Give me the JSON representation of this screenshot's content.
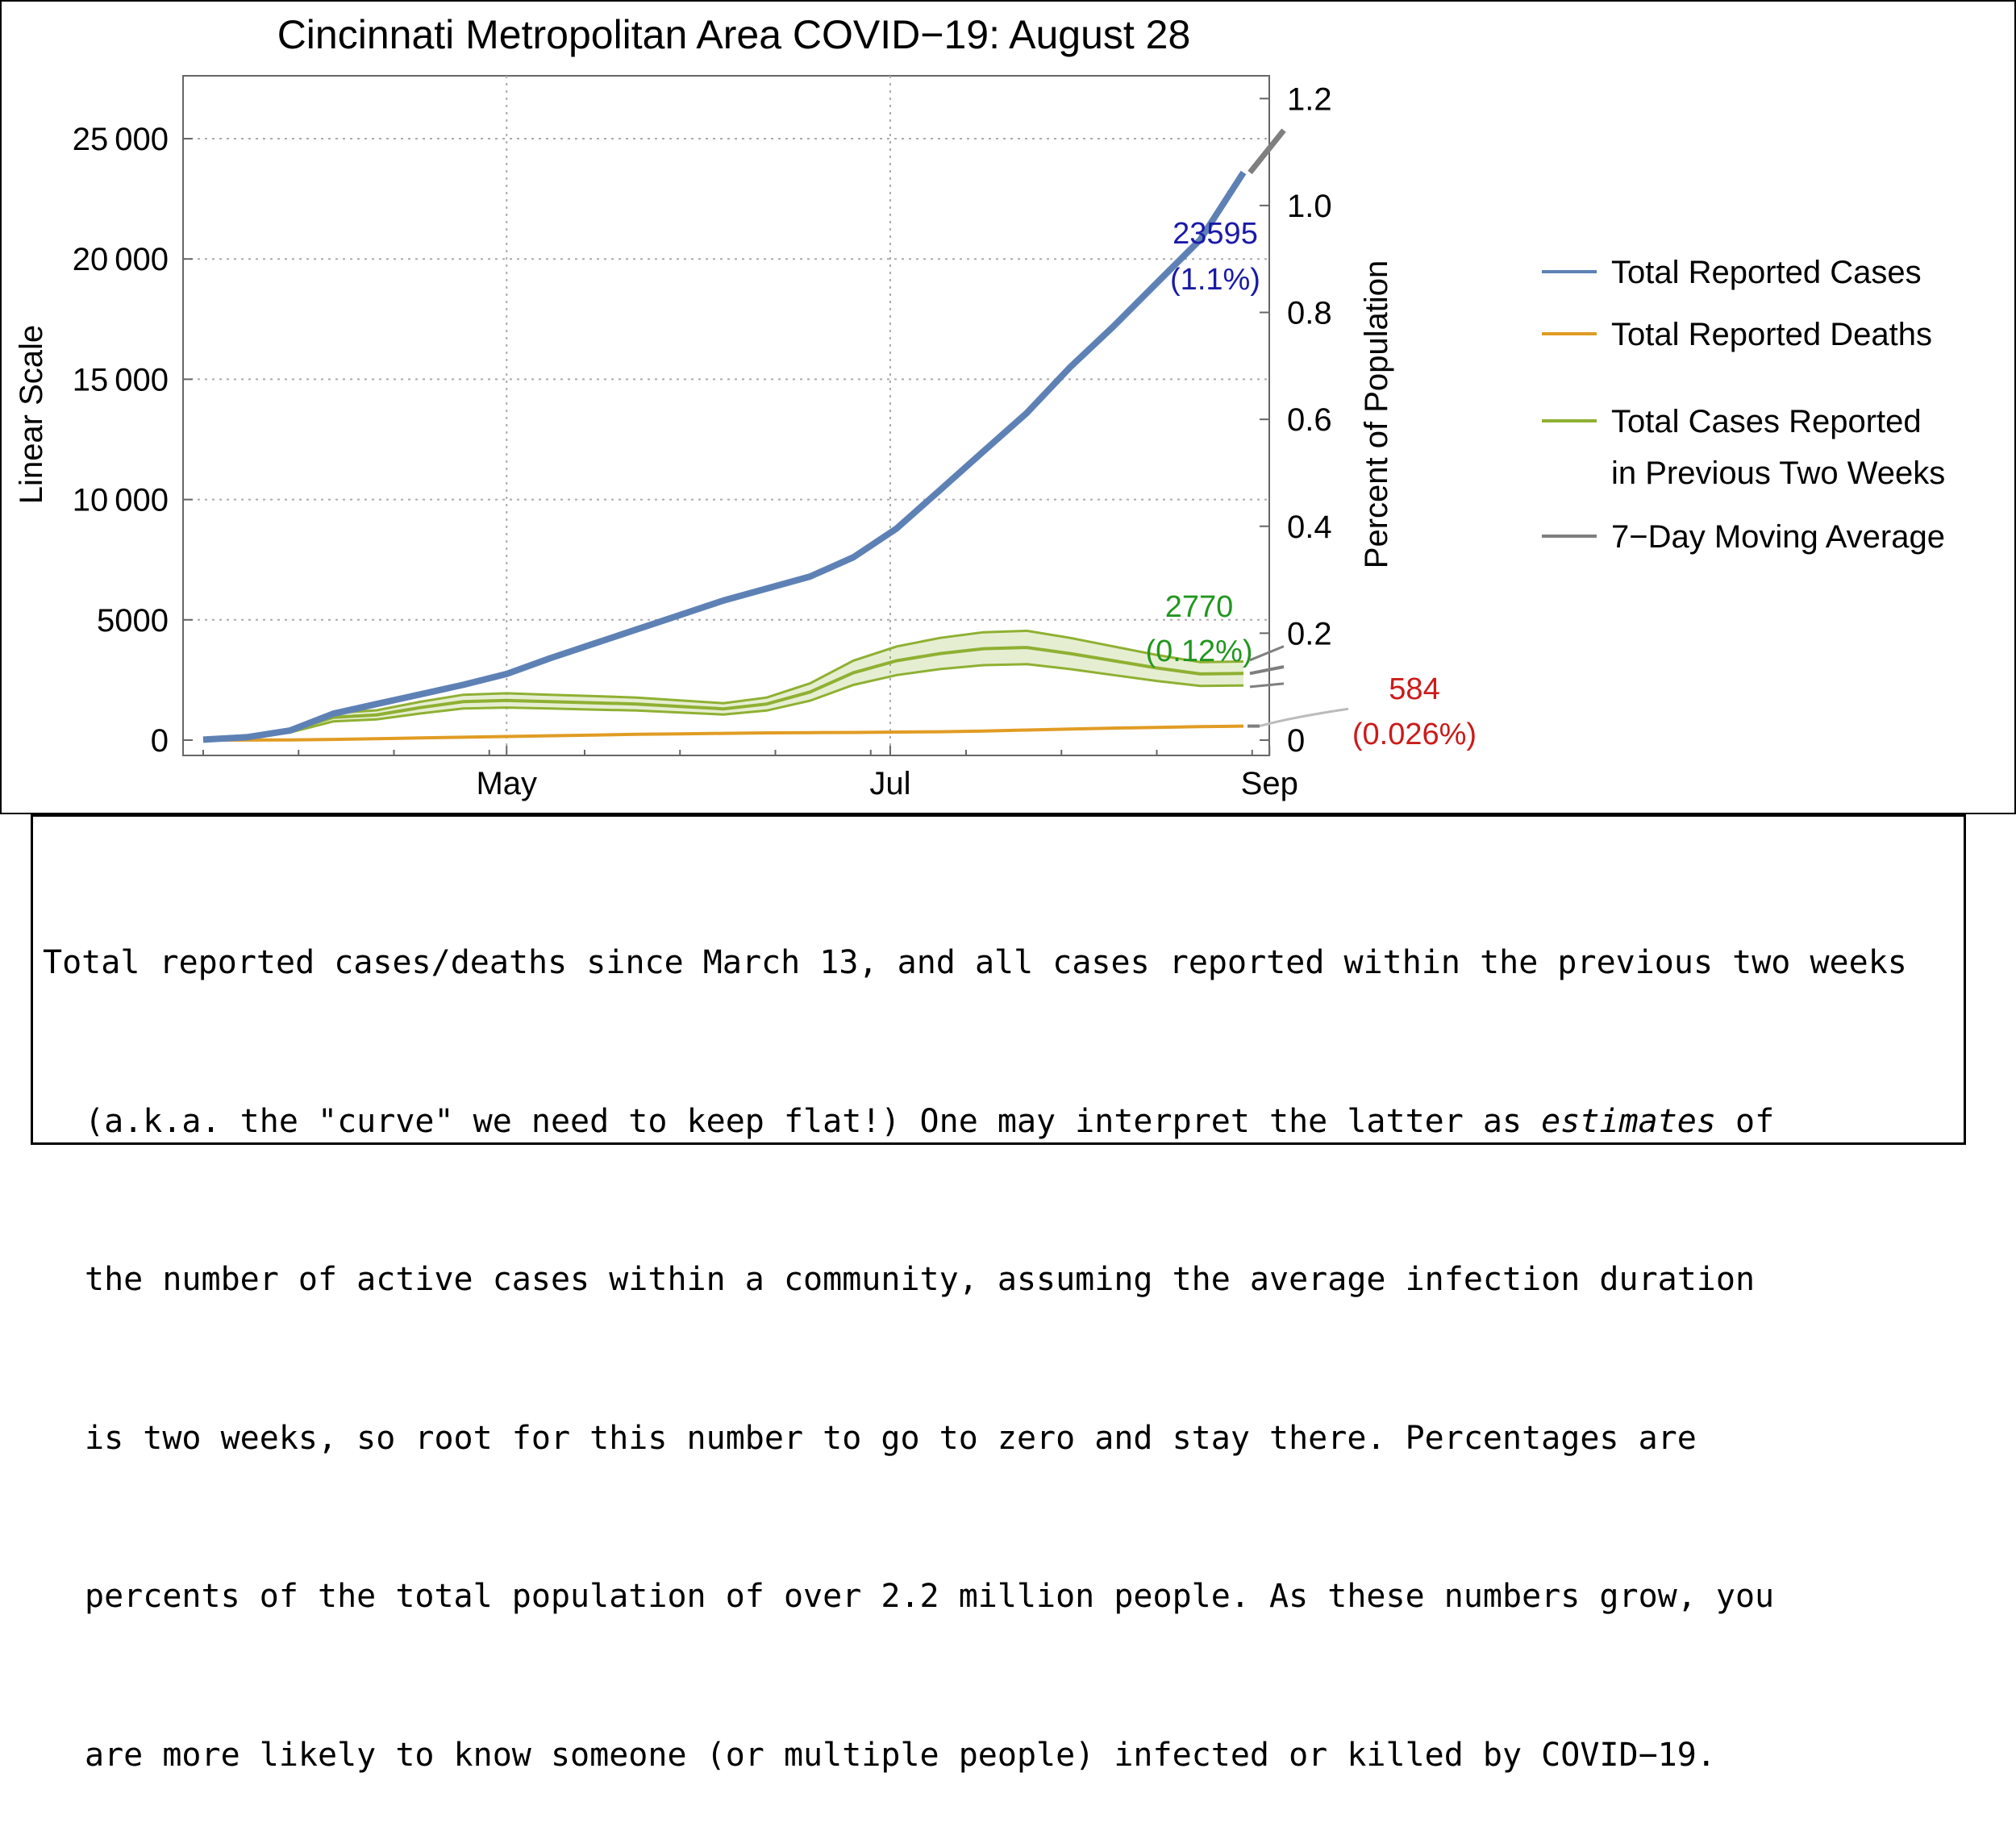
{
  "chart_data": {
    "type": "line",
    "title": "Cincinnati Metropolitan Area COVID−19: August 28",
    "ylabel": "Linear Scale",
    "y2label": "Percent of Population",
    "ylim": [
      0,
      27000
    ],
    "y2lim": [
      0,
      1.2
    ],
    "yticks": [
      0,
      5000,
      10000,
      15000,
      20000,
      25000
    ],
    "ytick_labels": [
      "0",
      "5000",
      "10 000",
      "15 000",
      "20 000",
      "25 000"
    ],
    "y2ticks": [
      0,
      0.2,
      0.4,
      0.6,
      0.8,
      1.0,
      1.2
    ],
    "y2tick_labels": [
      "0",
      "0.2",
      "0.4",
      "0.6",
      "0.8",
      "1.0",
      "1.2"
    ],
    "xticks": [
      "May",
      "Jul",
      "Sep"
    ],
    "grid": true,
    "legend_placement": "right",
    "x_dates": [
      "Mar 13",
      "Mar 20",
      "Mar 27",
      "Apr 3",
      "Apr 10",
      "Apr 17",
      "Apr 24",
      "May 1",
      "May 8",
      "May 15",
      "May 22",
      "May 29",
      "Jun 5",
      "Jun 12",
      "Jun 19",
      "Jun 26",
      "Jul 3",
      "Jul 10",
      "Jul 17",
      "Jul 24",
      "Jul 31",
      "Aug 7",
      "Aug 14",
      "Aug 21",
      "Aug 28"
    ],
    "series": [
      {
        "name": "Total Reported Cases",
        "color": "#5e81b5",
        "values": [
          20,
          120,
          400,
          1100,
          1500,
          1900,
          2300,
          2750,
          3400,
          4000,
          4600,
          5200,
          5800,
          6300,
          6800,
          7600,
          8800,
          10400,
          12000,
          13600,
          15500,
          17200,
          19000,
          20800,
          23595
        ]
      },
      {
        "name": "Total Reported Deaths",
        "color": "#e19c24",
        "values": [
          0,
          2,
          10,
          30,
          60,
          90,
          120,
          150,
          180,
          210,
          240,
          260,
          280,
          300,
          310,
          320,
          335,
          350,
          380,
          420,
          460,
          500,
          530,
          560,
          584
        ]
      },
      {
        "name": "Total Cases Reported in Previous Two Weeks",
        "color": "#8fb032",
        "values": [
          20,
          120,
          390,
          950,
          1050,
          1350,
          1600,
          1650,
          1600,
          1550,
          1500,
          1400,
          1300,
          1500,
          2000,
          2800,
          3300,
          3600,
          3800,
          3850,
          3600,
          3300,
          3000,
          2750,
          2770
        ]
      },
      {
        "name": "7−Day Moving Average",
        "color": "#7f7f7f",
        "values": []
      }
    ],
    "annotations": [
      {
        "text": "23595",
        "color": "#1a1aa8"
      },
      {
        "text": "(1.1%)",
        "color": "#1a1aa8"
      },
      {
        "text": "2770",
        "color": "#22961f"
      },
      {
        "text": "(0.12%)",
        "color": "#22961f"
      },
      {
        "text": "584",
        "color": "#cc1a1a"
      },
      {
        "text": "(0.026%)",
        "color": "#cc1a1a"
      }
    ]
  },
  "legend": [
    {
      "label_lines": [
        "Total Reported Cases"
      ],
      "color": "#5e81b5"
    },
    {
      "label_lines": [
        "Total Reported Deaths"
      ],
      "color": "#e19c24"
    },
    {
      "label_lines": [
        "Total Cases Reported",
        "in Previous Two Weeks"
      ],
      "color": "#8fb032"
    },
    {
      "label_lines": [
        "7−Day Moving Average"
      ],
      "color": "#7f7f7f"
    }
  ],
  "caption": {
    "lines": [
      "Total reported cases/deaths since March 13, and all cases reported within the previous two weeks",
      "(a.k.a. the \"curve\" we need to keep flat!) One may interpret the latter as ",
      "the number of active cases within a community, assuming the average infection duration",
      "is two weeks, so root for this number to go to zero and stay there. Percentages are",
      "percents of the total population of over 2.2 million people. As these numbers grow, you",
      "are more likely to know someone (or multiple people) infected or killed by COVID−19."
    ],
    "emphasis_word": "estimates",
    "after_emphasis": " of"
  }
}
